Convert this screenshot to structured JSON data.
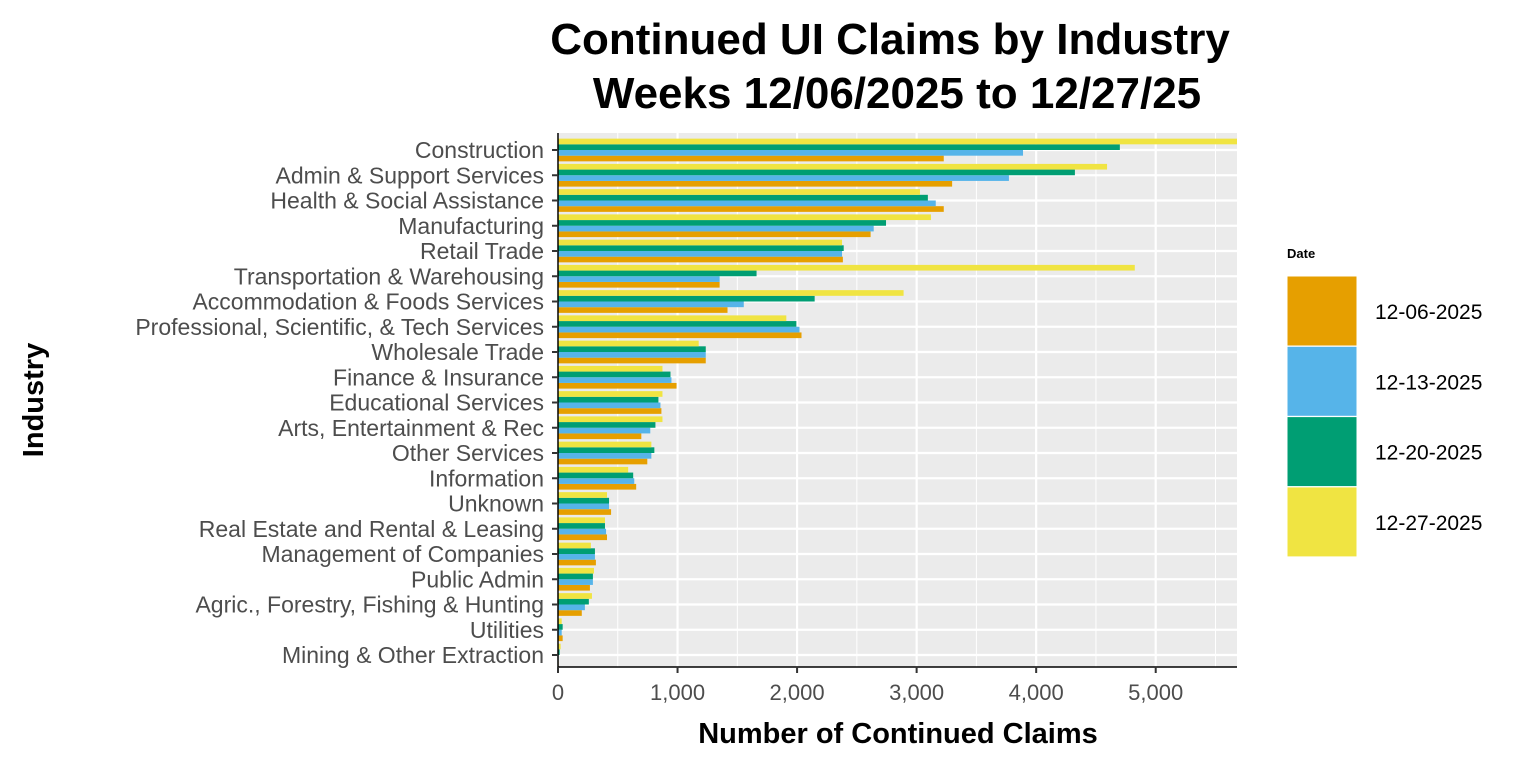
{
  "chart_data": {
    "type": "bar",
    "orientation": "horizontal",
    "title": [
      "Continued UI Claims by Industry",
      "Weeks 12/06/2025 to 12/27/25"
    ],
    "xlabel": "Number of Continued Claims",
    "ylabel": "Industry",
    "xlim": [
      0,
      5680
    ],
    "xticks": [
      0,
      1000,
      2000,
      3000,
      4000,
      5000
    ],
    "xtick_labels": [
      "0",
      "1,000",
      "2,000",
      "3,000",
      "4,000",
      "5,000"
    ],
    "grid": true,
    "legend": {
      "title": "Date",
      "position": "right"
    },
    "categories": [
      "Construction",
      "Admin & Support Services",
      "Health & Social Assistance",
      "Manufacturing",
      "Retail Trade",
      "Transportation & Warehousing",
      "Accommodation & Foods Services",
      "Professional, Scientific, & Tech Services",
      "Wholesale Trade",
      "Finance & Insurance",
      "Educational Services",
      "Arts, Entertainment & Rec",
      "Other Services",
      "Information",
      "Unknown",
      "Real Estate and Rental & Leasing",
      "Management of Companies",
      "Public Admin",
      "Agric., Forestry, Fishing & Hunting",
      "Utilities",
      "Mining & Other Extraction"
    ],
    "series": [
      {
        "name": "12-06-2025",
        "color": "#E69F00",
        "values": [
          3227,
          3297,
          3227,
          2615,
          2383,
          1352,
          1418,
          2037,
          1236,
          992,
          865,
          697,
          747,
          654,
          444,
          410,
          317,
          267,
          199,
          39,
          5
        ]
      },
      {
        "name": "12-13-2025",
        "color": "#56B4E9",
        "values": [
          3890,
          3772,
          3160,
          2641,
          2376,
          1352,
          1554,
          2020,
          1236,
          949,
          857,
          772,
          781,
          638,
          427,
          402,
          309,
          292,
          225,
          31,
          5
        ]
      },
      {
        "name": "12-20-2025",
        "color": "#009E73",
        "values": [
          4700,
          4324,
          3094,
          2744,
          2390,
          1661,
          2147,
          1994,
          1236,
          941,
          840,
          815,
          806,
          629,
          427,
          393,
          309,
          292,
          258,
          39,
          14
        ]
      },
      {
        "name": "12-27-2025",
        "color": "#F0E442",
        "values": [
          5750,
          4593,
          3028,
          3120,
          2376,
          4825,
          2891,
          1910,
          1177,
          874,
          874,
          874,
          781,
          587,
          410,
          393,
          275,
          301,
          284,
          31,
          22
        ]
      }
    ]
  }
}
